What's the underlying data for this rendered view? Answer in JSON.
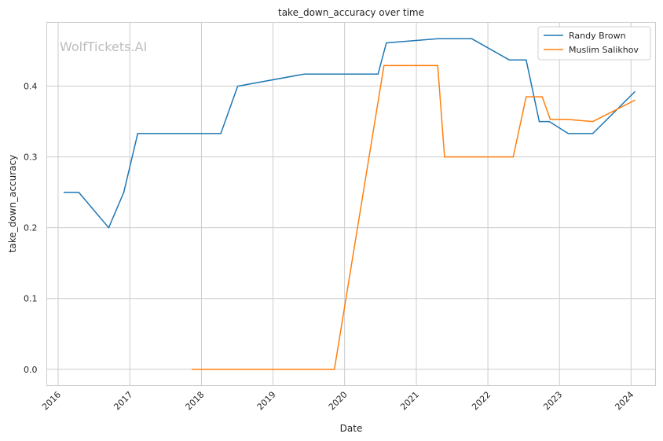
{
  "chart_data": {
    "type": "line",
    "title": "take_down_accuracy over time",
    "xlabel": "Date",
    "ylabel": "take_down_accuracy",
    "watermark": "WolfTickets.AI",
    "xlim": [
      "2015-11-04",
      "2024-05-05"
    ],
    "ylim": [
      -0.023,
      0.49
    ],
    "x_ticks": [
      "2016",
      "2017",
      "2018",
      "2019",
      "2020",
      "2021",
      "2022",
      "2023",
      "2024"
    ],
    "y_ticks": [
      "0.0",
      "0.1",
      "0.2",
      "0.3",
      "0.4"
    ],
    "grid": true,
    "legend_position": "top-right",
    "series": [
      {
        "name": "Randy Brown",
        "color": "#1f77b4",
        "points": [
          [
            "2016-02-01",
            0.25
          ],
          [
            "2016-04-15",
            0.25
          ],
          [
            "2016-09-15",
            0.2
          ],
          [
            "2016-12-01",
            0.25
          ],
          [
            "2017-02-10",
            0.333
          ],
          [
            "2018-04-10",
            0.333
          ],
          [
            "2018-07-05",
            0.4
          ],
          [
            "2019-06-10",
            0.417
          ],
          [
            "2020-06-20",
            0.417
          ],
          [
            "2020-08-01",
            0.461
          ],
          [
            "2021-04-20",
            0.467
          ],
          [
            "2021-10-10",
            0.467
          ],
          [
            "2022-04-20",
            0.437
          ],
          [
            "2022-07-15",
            0.437
          ],
          [
            "2022-09-20",
            0.35
          ],
          [
            "2022-11-10",
            0.35
          ],
          [
            "2023-02-15",
            0.333
          ],
          [
            "2023-06-20",
            0.333
          ],
          [
            "2024-01-20",
            0.392
          ]
        ]
      },
      {
        "name": "Muslim Salikhov",
        "color": "#ff7f0e",
        "points": [
          [
            "2017-11-15",
            0.0
          ],
          [
            "2019-11-10",
            0.0
          ],
          [
            "2020-07-20",
            0.429
          ],
          [
            "2021-04-20",
            0.429
          ],
          [
            "2021-05-25",
            0.3
          ],
          [
            "2022-05-10",
            0.3
          ],
          [
            "2022-07-15",
            0.385
          ],
          [
            "2022-10-05",
            0.385
          ],
          [
            "2022-11-15",
            0.353
          ],
          [
            "2023-02-10",
            0.353
          ],
          [
            "2023-06-20",
            0.35
          ],
          [
            "2024-01-20",
            0.38
          ]
        ]
      }
    ]
  }
}
